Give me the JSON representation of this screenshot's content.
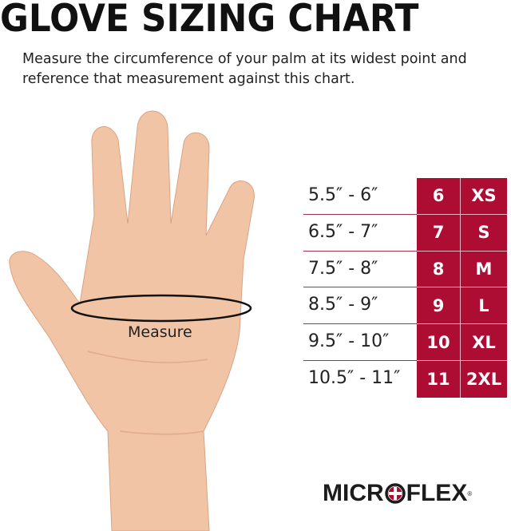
{
  "title": "GLOVE SIZING CHART",
  "subtitle": "Measure the circumference of your palm at its widest point and reference that measurement against this chart.",
  "hand_label": "Measure",
  "size_table": {
    "rows": [
      {
        "range": "5.5″ - 6″",
        "number": "6",
        "size": "XS"
      },
      {
        "range": "6.5″ - 7″",
        "number": "7",
        "size": "S"
      },
      {
        "range": "7.5″ - 8″",
        "number": "8",
        "size": "M"
      },
      {
        "range": "8.5″ - 9″",
        "number": "9",
        "size": "L"
      },
      {
        "range": "9.5″ - 10″",
        "number": "10",
        "size": "XL"
      },
      {
        "range": "10.5″ - 11″",
        "number": "11",
        "size": "2XL"
      }
    ]
  },
  "logo": {
    "left": "MICR",
    "right": "FLEX",
    "mark": "®"
  },
  "colors": {
    "accent": "#ad0d33",
    "skin": "#f1c4a6",
    "text": "#111111"
  }
}
